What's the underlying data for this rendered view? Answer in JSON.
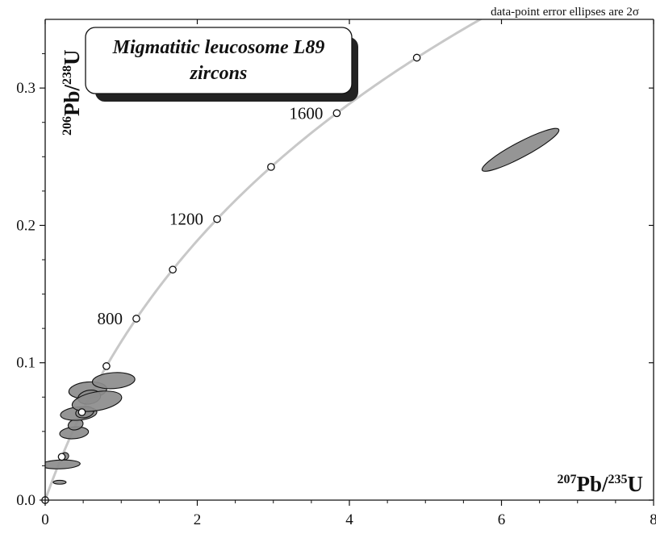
{
  "chart_data": {
    "type": "scatter",
    "title_lines": [
      "Migmatitic leucosome L89",
      "zircons"
    ],
    "note": "data-point error ellipses are 2σ",
    "xlabel": {
      "mass_a": "207",
      "elem_a": "Pb/",
      "mass_b": "235",
      "elem_b": "U"
    },
    "ylabel": {
      "mass_a": "206",
      "elem_a": "Pb/",
      "mass_b": "238",
      "elem_b": "U"
    },
    "xlim": [
      0,
      8
    ],
    "ylim": [
      0,
      0.35
    ],
    "x_ticks": [
      {
        "value": 0,
        "label": "0"
      },
      {
        "value": 2,
        "label": "2"
      },
      {
        "value": 4,
        "label": "4"
      },
      {
        "value": 6,
        "label": "6"
      },
      {
        "value": 8,
        "label": "8"
      }
    ],
    "y_ticks": [
      {
        "value": 0.0,
        "label": "0.0"
      },
      {
        "value": 0.1,
        "label": "0.1"
      },
      {
        "value": 0.2,
        "label": "0.2"
      },
      {
        "value": 0.3,
        "label": "0.3"
      }
    ],
    "concordia_ages_ma": [
      0,
      200,
      400,
      600,
      800,
      1000,
      1200,
      1400,
      1600,
      1800
    ],
    "concordia_labels": [
      {
        "age": 800,
        "label": "800"
      },
      {
        "age": 1200,
        "label": "1200"
      },
      {
        "age": 1600,
        "label": "1600"
      }
    ],
    "error_ellipses": [
      {
        "x": 0.2,
        "y": 0.026,
        "rx": 0.26,
        "ry": 0.0032,
        "angle": -2
      },
      {
        "x": 0.19,
        "y": 0.013,
        "rx": 0.085,
        "ry": 0.0014,
        "angle": 0
      },
      {
        "x": 0.26,
        "y": 0.032,
        "rx": 0.05,
        "ry": 0.0026,
        "angle": -20
      },
      {
        "x": 0.38,
        "y": 0.049,
        "rx": 0.19,
        "ry": 0.0043,
        "angle": -5
      },
      {
        "x": 0.4,
        "y": 0.055,
        "rx": 0.1,
        "ry": 0.0038,
        "angle": -15
      },
      {
        "x": 0.44,
        "y": 0.063,
        "rx": 0.24,
        "ry": 0.0048,
        "angle": -5
      },
      {
        "x": 0.52,
        "y": 0.064,
        "rx": 0.12,
        "ry": 0.004,
        "angle": -12
      },
      {
        "x": 0.56,
        "y": 0.08,
        "rx": 0.25,
        "ry": 0.006,
        "angle": -5
      },
      {
        "x": 0.58,
        "y": 0.075,
        "rx": 0.15,
        "ry": 0.005,
        "angle": -10
      },
      {
        "x": 0.68,
        "y": 0.072,
        "rx": 0.33,
        "ry": 0.0068,
        "angle": -10
      },
      {
        "x": 0.9,
        "y": 0.087,
        "rx": 0.28,
        "ry": 0.0058,
        "angle": -4
      },
      {
        "x": 6.25,
        "y": 0.255,
        "rx": 0.57,
        "ry": 0.0055,
        "angle": -28
      }
    ]
  }
}
